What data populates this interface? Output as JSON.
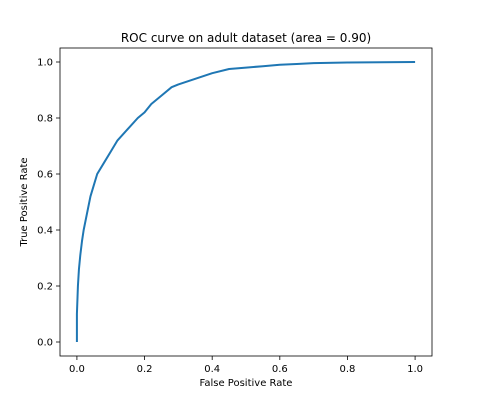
{
  "chart_data": {
    "type": "line",
    "title": "ROC curve on adult dataset (area = 0.90)",
    "xlabel": "False Positive Rate",
    "ylabel": "True Positive Rate",
    "xlim": [
      -0.05,
      1.05
    ],
    "ylim": [
      -0.05,
      1.05
    ],
    "xticks": [
      0.0,
      0.2,
      0.4,
      0.6,
      0.8,
      1.0
    ],
    "yticks": [
      0.0,
      0.2,
      0.4,
      0.6,
      0.8,
      1.0
    ],
    "xtick_labels": [
      "0.0",
      "0.2",
      "0.4",
      "0.6",
      "0.8",
      "1.0"
    ],
    "ytick_labels": [
      "0.0",
      "0.2",
      "0.4",
      "0.6",
      "0.8",
      "1.0"
    ],
    "grid": false,
    "series": [
      {
        "color": "#1f77b4",
        "x": [
          0.0,
          0.0,
          0.003,
          0.006,
          0.01,
          0.015,
          0.02,
          0.03,
          0.04,
          0.05,
          0.06,
          0.08,
          0.1,
          0.12,
          0.15,
          0.18,
          0.2,
          0.22,
          0.25,
          0.28,
          0.3,
          0.35,
          0.4,
          0.45,
          0.5,
          0.55,
          0.6,
          0.65,
          0.7,
          0.8,
          0.9,
          1.0
        ],
        "y": [
          0.0,
          0.1,
          0.2,
          0.26,
          0.31,
          0.36,
          0.4,
          0.46,
          0.52,
          0.56,
          0.6,
          0.64,
          0.68,
          0.72,
          0.76,
          0.8,
          0.82,
          0.85,
          0.88,
          0.91,
          0.92,
          0.94,
          0.96,
          0.975,
          0.98,
          0.985,
          0.99,
          0.993,
          0.996,
          0.998,
          0.999,
          1.0
        ]
      }
    ]
  }
}
